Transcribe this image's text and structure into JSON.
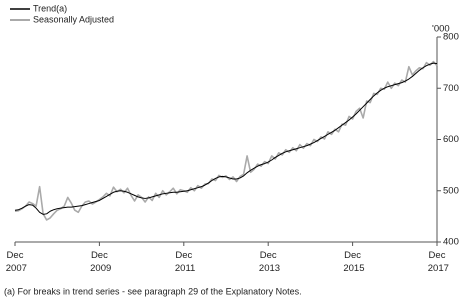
{
  "chart_data": {
    "type": "line",
    "y_unit": "'000",
    "footnote": "(a) For breaks in trend series - see paragraph 29 of the Explanatory Notes.",
    "categories": [
      "Dec 2007",
      null,
      null,
      null,
      null,
      null,
      null,
      null,
      null,
      null,
      null,
      null,
      null,
      null,
      null,
      null,
      null,
      null,
      null,
      null,
      null,
      null,
      null,
      null,
      "Dec 2009",
      null,
      null,
      null,
      null,
      null,
      null,
      null,
      null,
      null,
      null,
      null,
      null,
      null,
      null,
      null,
      null,
      null,
      null,
      null,
      null,
      null,
      null,
      null,
      "Dec 2011",
      null,
      null,
      null,
      null,
      null,
      null,
      null,
      null,
      null,
      null,
      null,
      null,
      null,
      null,
      null,
      null,
      null,
      null,
      null,
      null,
      null,
      null,
      null,
      "Dec 2013",
      null,
      null,
      null,
      null,
      null,
      null,
      null,
      null,
      null,
      null,
      null,
      null,
      null,
      null,
      null,
      null,
      null,
      null,
      null,
      null,
      null,
      null,
      null,
      "Dec 2015",
      null,
      null,
      null,
      null,
      null,
      null,
      null,
      null,
      null,
      null,
      null,
      null,
      null,
      null,
      null,
      null,
      null,
      null,
      null,
      null,
      null,
      null,
      null,
      "Dec 2017"
    ],
    "series": [
      {
        "name": "Trend(a)",
        "color": "#000000",
        "width": 1,
        "values": [
          462,
          463,
          466,
          470,
          473,
          472,
          466,
          458,
          454,
          455,
          460,
          463,
          465,
          466,
          467,
          468,
          468,
          469,
          470,
          471,
          473,
          475,
          477,
          479,
          481,
          485,
          489,
          493,
          497,
          499,
          500,
          499,
          497,
          494,
          491,
          488,
          486,
          485,
          486,
          488,
          490,
          492,
          494,
          495,
          496,
          497,
          497,
          498,
          499,
          500,
          502,
          504,
          506,
          508,
          511,
          515,
          520,
          524,
          527,
          528,
          527,
          525,
          523,
          523,
          525,
          529,
          535,
          540,
          544,
          548,
          551,
          553,
          556,
          560,
          565,
          569,
          573,
          576,
          578,
          580,
          582,
          584,
          586,
          588,
          591,
          594,
          598,
          602,
          606,
          610,
          614,
          618,
          623,
          628,
          633,
          638,
          644,
          650,
          657,
          664,
          671,
          678,
          685,
          691,
          696,
          700,
          703,
          705,
          707,
          709,
          711,
          714,
          718,
          723,
          729,
          735,
          740,
          744,
          747,
          749,
          748
        ]
      },
      {
        "name": "Seasonally Adjusted",
        "color": "#aaaaaa",
        "width": 1.6,
        "values": [
          460,
          461,
          465,
          470,
          478,
          475,
          470,
          508,
          455,
          443,
          447,
          455,
          462,
          465,
          470,
          487,
          476,
          462,
          458,
          470,
          478,
          480,
          474,
          478,
          483,
          488,
          495,
          490,
          507,
          498,
          503,
          496,
          505,
          491,
          480,
          492,
          487,
          478,
          488,
          481,
          495,
          487,
          500,
          492,
          498,
          505,
          494,
          502,
          500,
          497,
          506,
          500,
          510,
          505,
          513,
          514,
          523,
          520,
          530,
          526,
          529,
          522,
          527,
          518,
          528,
          532,
          568,
          536,
          542,
          552,
          548,
          557,
          553,
          568,
          562,
          574,
          570,
          580,
          575,
          584,
          578,
          590,
          583,
          592,
          588,
          600,
          596,
          605,
          601,
          615,
          610,
          620,
          615,
          630,
          628,
          645,
          640,
          655,
          661,
          642,
          675,
          672,
          690,
          688,
          700,
          698,
          712,
          700,
          710,
          705,
          716,
          712,
          742,
          726,
          734,
          740,
          738,
          750,
          745,
          752,
          744
        ]
      }
    ],
    "ylim": [
      400,
      800
    ],
    "yticks": [
      400,
      500,
      600,
      700,
      800
    ],
    "y_axis_side": "right",
    "grid": false,
    "legend": "top-left"
  }
}
